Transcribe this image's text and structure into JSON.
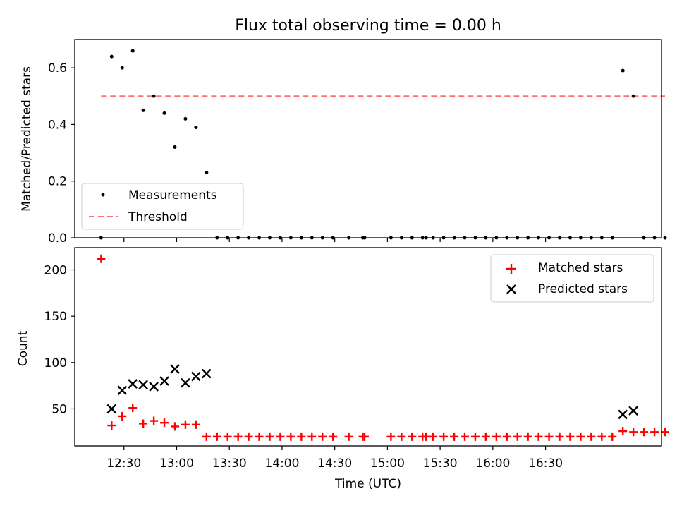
{
  "chart_data": [
    {
      "type": "scatter",
      "title": "Flux total observing time = 0.00 h",
      "xlabel": "",
      "ylabel": "Matched/Predicted stars",
      "xlim_minutes_utc": [
        722,
        1056
      ],
      "ylim": [
        0,
        0.7
      ],
      "yticks": [
        0.0,
        0.2,
        0.4,
        0.6
      ],
      "ytick_labels": [
        "0.0",
        "0.2",
        "0.4",
        "0.6"
      ],
      "legend_position": "lower-left",
      "series": [
        {
          "name": "Measurements",
          "marker": "dot",
          "color": "#000000",
          "points": [
            [
              737,
              0.0
            ],
            [
              743,
              0.64
            ],
            [
              749,
              0.6
            ],
            [
              755,
              0.66
            ],
            [
              761,
              0.45
            ],
            [
              767,
              0.5
            ],
            [
              773,
              0.44
            ],
            [
              779,
              0.32
            ],
            [
              785,
              0.42
            ],
            [
              791,
              0.39
            ],
            [
              797,
              0.23
            ],
            [
              803,
              0.0
            ],
            [
              809,
              0.0
            ],
            [
              815,
              0.0
            ],
            [
              821,
              0.0
            ],
            [
              827,
              0.0
            ],
            [
              833,
              0.0
            ],
            [
              839,
              0.0
            ],
            [
              845,
              0.0
            ],
            [
              851,
              0.0
            ],
            [
              857,
              0.0
            ],
            [
              863,
              0.0
            ],
            [
              869,
              0.0
            ],
            [
              878,
              0.0
            ],
            [
              886,
              0.0
            ],
            [
              887,
              0.0
            ],
            [
              902,
              0.0
            ],
            [
              908,
              0.0
            ],
            [
              914,
              0.0
            ],
            [
              920,
              0.0
            ],
            [
              922,
              0.0
            ],
            [
              926,
              0.0
            ],
            [
              932,
              0.0
            ],
            [
              938,
              0.0
            ],
            [
              944,
              0.0
            ],
            [
              950,
              0.0
            ],
            [
              956,
              0.0
            ],
            [
              962,
              0.0
            ],
            [
              968,
              0.0
            ],
            [
              974,
              0.0
            ],
            [
              980,
              0.0
            ],
            [
              986,
              0.0
            ],
            [
              992,
              0.0
            ],
            [
              998,
              0.0
            ],
            [
              1004,
              0.0
            ],
            [
              1010,
              0.0
            ],
            [
              1016,
              0.0
            ],
            [
              1022,
              0.0
            ],
            [
              1028,
              0.0
            ],
            [
              1034,
              0.59
            ],
            [
              1040,
              0.5
            ],
            [
              1046,
              0.0
            ],
            [
              1052,
              0.0
            ],
            [
              1058,
              0.0
            ]
          ]
        },
        {
          "name": "Threshold",
          "marker": "dashed-line",
          "color": "#ff7070",
          "points": [
            [
              737,
              0.5
            ],
            [
              1058,
              0.5
            ]
          ]
        }
      ]
    },
    {
      "type": "scatter",
      "title": "",
      "xlabel": "Time (UTC)",
      "ylabel": "Count",
      "xlim_minutes_utc": [
        722,
        1056
      ],
      "ylim": [
        10,
        224
      ],
      "yticks": [
        50,
        100,
        150,
        200
      ],
      "ytick_labels": [
        "50",
        "100",
        "150",
        "200"
      ],
      "x_ticks_minutes_utc": [
        750,
        780,
        810,
        840,
        870,
        900,
        930,
        960,
        990
      ],
      "x_tick_labels": [
        "12:30",
        "13:00",
        "13:30",
        "14:00",
        "14:30",
        "15:00",
        "15:30",
        "16:00",
        "16:30"
      ],
      "legend_position": "top-right",
      "series": [
        {
          "name": "Matched stars",
          "marker": "plus",
          "color": "#ff0000",
          "points": [
            [
              737,
              212
            ],
            [
              743,
              32
            ],
            [
              749,
              42
            ],
            [
              755,
              51
            ],
            [
              761,
              34
            ],
            [
              767,
              37
            ],
            [
              773,
              35
            ],
            [
              779,
              31
            ],
            [
              785,
              33
            ],
            [
              791,
              33
            ],
            [
              797,
              20
            ],
            [
              803,
              20
            ],
            [
              809,
              20
            ],
            [
              815,
              20
            ],
            [
              821,
              20
            ],
            [
              827,
              20
            ],
            [
              833,
              20
            ],
            [
              839,
              20
            ],
            [
              845,
              20
            ],
            [
              851,
              20
            ],
            [
              857,
              20
            ],
            [
              863,
              20
            ],
            [
              869,
              20
            ],
            [
              878,
              20
            ],
            [
              886,
              20
            ],
            [
              887,
              20
            ],
            [
              902,
              20
            ],
            [
              908,
              20
            ],
            [
              914,
              20
            ],
            [
              920,
              20
            ],
            [
              922,
              20
            ],
            [
              926,
              20
            ],
            [
              932,
              20
            ],
            [
              938,
              20
            ],
            [
              944,
              20
            ],
            [
              950,
              20
            ],
            [
              956,
              20
            ],
            [
              962,
              20
            ],
            [
              968,
              20
            ],
            [
              974,
              20
            ],
            [
              980,
              20
            ],
            [
              986,
              20
            ],
            [
              992,
              20
            ],
            [
              998,
              20
            ],
            [
              1004,
              20
            ],
            [
              1010,
              20
            ],
            [
              1016,
              20
            ],
            [
              1022,
              20
            ],
            [
              1028,
              20
            ],
            [
              1034,
              26
            ],
            [
              1040,
              25
            ],
            [
              1046,
              25
            ],
            [
              1052,
              25
            ],
            [
              1058,
              25
            ]
          ]
        },
        {
          "name": "Predicted stars",
          "marker": "x",
          "color": "#000000",
          "points": [
            [
              743,
              50
            ],
            [
              749,
              70
            ],
            [
              755,
              77
            ],
            [
              761,
              76
            ],
            [
              767,
              74
            ],
            [
              773,
              80
            ],
            [
              779,
              93
            ],
            [
              785,
              78
            ],
            [
              791,
              85
            ],
            [
              797,
              88
            ],
            [
              1034,
              44
            ],
            [
              1040,
              48
            ]
          ]
        }
      ]
    }
  ]
}
